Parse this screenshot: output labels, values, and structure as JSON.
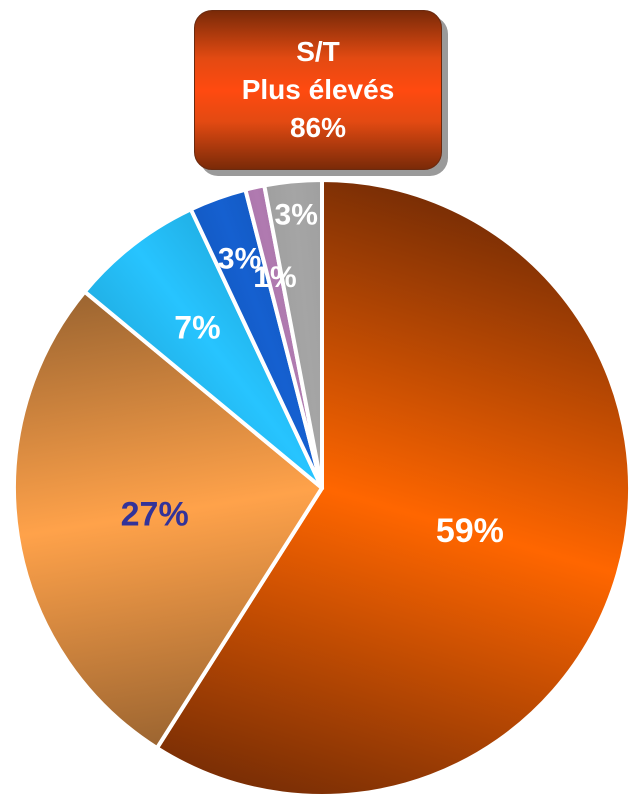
{
  "callout": {
    "line1": "S/T",
    "line2": "Plus élevés",
    "line3": "86%"
  },
  "chart_data": {
    "type": "pie",
    "start_angle_deg": 0,
    "direction": "clockwise",
    "slices": [
      {
        "value": 59,
        "label": "59%",
        "label_color": "#ffffff",
        "fill_light": "#ff6600",
        "fill_dark": "#7a2e05"
      },
      {
        "value": 27,
        "label": "27%",
        "label_color": "#333399",
        "fill_light": "#ffa24a",
        "fill_dark": "#7a5028"
      },
      {
        "value": 7,
        "label": "7%",
        "label_color": "#ffffff",
        "fill_light": "#27c4ff",
        "fill_dark": "#0c6c8e"
      },
      {
        "value": 3,
        "label": "3%",
        "label_color": "#ffffff",
        "fill_light": "#1560d0",
        "fill_dark": "#082a60"
      },
      {
        "value": 1,
        "label": "1%",
        "label_color": "#ffffff",
        "fill_light": "#b07ab0",
        "fill_dark": "#4a2a4a"
      },
      {
        "value": 3,
        "label": "3%",
        "label_color": "#ffffff",
        "fill_light": "#a5a5a5",
        "fill_dark": "#6a6a6a"
      }
    ]
  }
}
